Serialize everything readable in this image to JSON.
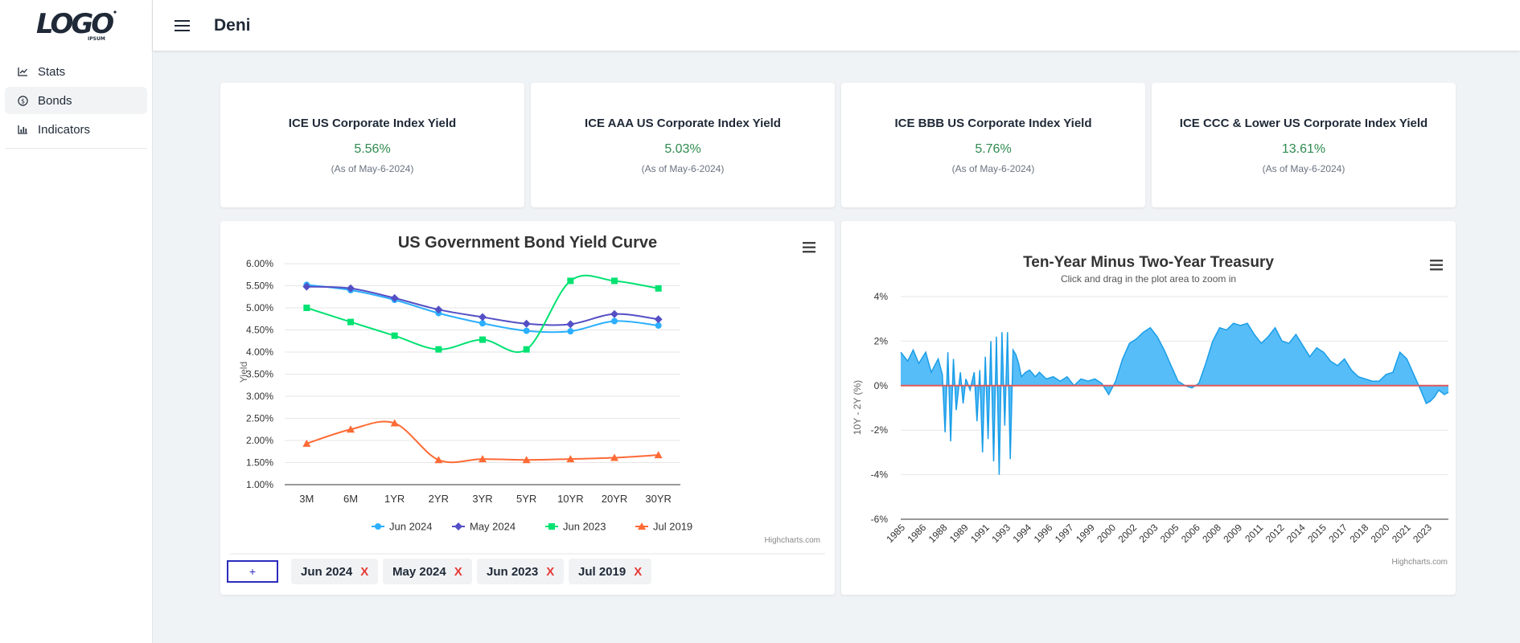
{
  "brand": {
    "logo_text": "LOGO",
    "logo_sub": "IPSUM"
  },
  "header": {
    "title": "Deni"
  },
  "sidebar": {
    "items": [
      {
        "label": "Stats",
        "icon": "line-chart-icon",
        "active": false
      },
      {
        "label": "Bonds",
        "icon": "dollar-circle-icon",
        "active": true
      },
      {
        "label": "Indicators",
        "icon": "bar-chart-icon",
        "active": false
      }
    ]
  },
  "stats": [
    {
      "title": "ICE US Corporate Index Yield",
      "value": "5.56%",
      "date": "(As of May-6-2024)"
    },
    {
      "title": "ICE AAA US Corporate Index Yield",
      "value": "5.03%",
      "date": "(As of May-6-2024)"
    },
    {
      "title": "ICE BBB US Corporate Index Yield",
      "value": "5.76%",
      "date": "(As of May-6-2024)"
    },
    {
      "title": "ICE CCC & Lower US Corporate Index Yield",
      "value": "13.61%",
      "date": "(As of May-6-2024)"
    }
  ],
  "chips": {
    "add_label": "+",
    "items": [
      {
        "label": "Jun 2024",
        "remove": "X"
      },
      {
        "label": "May 2024",
        "remove": "X"
      },
      {
        "label": "Jun 2023",
        "remove": "X"
      },
      {
        "label": "Jul 2019",
        "remove": "X"
      }
    ]
  },
  "chart_data": [
    {
      "type": "line",
      "title": "US Government Bond Yield Curve",
      "ylabel": "Yield",
      "xlabel": "",
      "credit": "Highcharts.com",
      "categories": [
        "3M",
        "6M",
        "1YR",
        "2YR",
        "3YR",
        "5YR",
        "10YR",
        "20YR",
        "30YR"
      ],
      "ylim": [
        1.0,
        6.0
      ],
      "yticks": [
        "1.00%",
        "1.50%",
        "2.00%",
        "2.50%",
        "3.00%",
        "3.50%",
        "4.00%",
        "4.50%",
        "5.00%",
        "5.50%",
        "6.00%"
      ],
      "legend": "bottom",
      "series": [
        {
          "name": "Jun 2024",
          "color": "#2caffe",
          "marker": "circle",
          "values": [
            5.52,
            5.4,
            5.18,
            4.88,
            4.65,
            4.48,
            4.47,
            4.7,
            4.6
          ]
        },
        {
          "name": "May 2024",
          "color": "#544fc5",
          "marker": "diamond",
          "values": [
            5.48,
            5.44,
            5.22,
            4.96,
            4.79,
            4.64,
            4.63,
            4.86,
            4.74
          ]
        },
        {
          "name": "Jun 2023",
          "color": "#00e272",
          "marker": "square",
          "values": [
            5.0,
            4.68,
            4.37,
            4.06,
            4.28,
            4.06,
            5.61,
            5.61,
            5.44
          ]
        },
        {
          "name": "Jul 2019",
          "color": "#fe6a35",
          "marker": "triangle",
          "values": [
            1.93,
            2.25,
            2.39,
            1.56,
            1.58,
            1.56,
            1.58,
            1.61,
            1.67
          ]
        }
      ]
    },
    {
      "type": "area",
      "title": "Ten-Year Minus Two-Year Treasury",
      "subtitle": "Click and drag in the plot area to zoom in",
      "ylabel": "10Y - 2Y (%)",
      "xlabel": "",
      "credit": "Highcharts.com",
      "ylim": [
        -6,
        4
      ],
      "yticks": [
        "-6%",
        "-4%",
        "-2%",
        "0%",
        "2%",
        "4%"
      ],
      "x_tick_labels": [
        "1985",
        "1986",
        "1988",
        "1989",
        "1991",
        "1993",
        "1994",
        "1996",
        "1997",
        "1999",
        "2000",
        "2002",
        "2003",
        "2005",
        "2006",
        "2008",
        "2009",
        "2011",
        "2012",
        "2014",
        "2015",
        "2017",
        "2018",
        "2020",
        "2021",
        "2023"
      ],
      "xlim": [
        1985,
        2024.5
      ],
      "fill_color": "#57bdf8",
      "line_color": "#1a9ee8",
      "zero_line_color": "#e05a5a",
      "series": [
        {
          "x": [
            1985.0,
            1985.5,
            1985.9,
            1986.3,
            1986.8,
            1987.2,
            1987.7,
            1988.0,
            1988.2,
            1988.4,
            1988.6,
            1988.8,
            1989.0,
            1989.3,
            1989.5,
            1989.7,
            1990.0,
            1990.3,
            1990.5,
            1990.7,
            1990.9,
            1991.1,
            1991.3,
            1991.5,
            1991.7,
            1991.9,
            1992.1,
            1992.3,
            1992.5,
            1992.7,
            1992.9,
            1993.1,
            1993.3,
            1993.5,
            1993.7,
            1994.0,
            1994.3,
            1994.7,
            1995.0,
            1995.5,
            1996.0,
            1996.5,
            1997.0,
            1997.5,
            1998.0,
            1998.5,
            1999.0,
            1999.5,
            2000.0,
            2000.5,
            2001.0,
            2001.5,
            2002.0,
            2002.5,
            2003.0,
            2003.5,
            2004.0,
            2004.5,
            2005.0,
            2005.5,
            2006.0,
            2006.5,
            2007.0,
            2007.5,
            2008.0,
            2008.5,
            2009.0,
            2009.5,
            2010.0,
            2010.5,
            2011.0,
            2011.5,
            2012.0,
            2012.5,
            2013.0,
            2013.5,
            2014.0,
            2014.5,
            2015.0,
            2015.5,
            2016.0,
            2016.5,
            2017.0,
            2017.5,
            2018.0,
            2018.5,
            2019.0,
            2019.5,
            2020.0,
            2020.5,
            2021.0,
            2021.5,
            2022.0,
            2022.5,
            2022.9,
            2023.2,
            2023.5,
            2023.8,
            2024.2,
            2024.5
          ],
          "y": [
            1.5,
            1.1,
            1.6,
            1.0,
            1.5,
            0.6,
            1.2,
            0.5,
            -2.1,
            1.5,
            -2.5,
            1.2,
            -1.1,
            0.6,
            -0.8,
            0.3,
            -0.2,
            0.6,
            -1.6,
            0.7,
            -3.0,
            1.3,
            -2.4,
            2.0,
            -3.4,
            2.2,
            -4.0,
            2.4,
            -1.8,
            2.4,
            -3.3,
            1.6,
            1.4,
            1.0,
            0.4,
            0.6,
            0.7,
            0.4,
            0.6,
            0.3,
            0.4,
            0.2,
            0.4,
            0.0,
            0.3,
            0.2,
            0.3,
            0.1,
            -0.4,
            0.2,
            1.2,
            1.9,
            2.1,
            2.4,
            2.6,
            2.2,
            1.6,
            0.9,
            0.2,
            0.0,
            -0.1,
            0.1,
            1.0,
            2.0,
            2.6,
            2.5,
            2.8,
            2.7,
            2.8,
            2.3,
            1.9,
            2.2,
            2.6,
            2.0,
            1.9,
            2.3,
            1.8,
            1.3,
            1.7,
            1.5,
            1.1,
            0.9,
            1.2,
            0.7,
            0.4,
            0.3,
            0.2,
            0.2,
            0.5,
            0.6,
            1.5,
            1.2,
            0.5,
            -0.2,
            -0.8,
            -0.7,
            -0.5,
            -0.2,
            -0.4,
            -0.3
          ]
        }
      ]
    }
  ]
}
